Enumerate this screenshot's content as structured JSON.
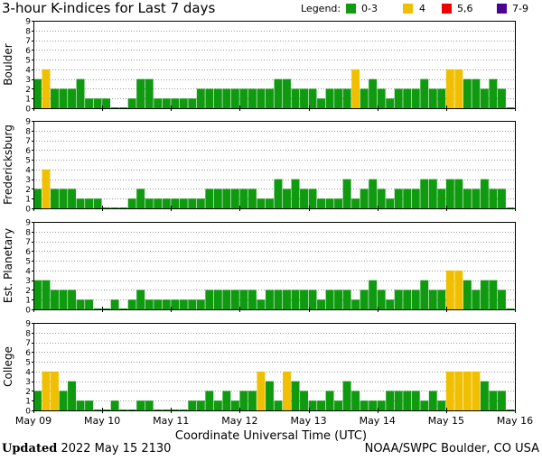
{
  "title": "3-hour K-indices for Last 7 days",
  "legend": {
    "label": "Legend:",
    "items": [
      {
        "label": "0-3",
        "color": "#0f9a0f"
      },
      {
        "label": "4",
        "color": "#f0c000"
      },
      {
        "label": "5,6",
        "color": "#ee0000"
      },
      {
        "label": "7-9",
        "color": "#4b0096"
      }
    ]
  },
  "footer": {
    "updated_label": "Updated",
    "updated_value": "2022 May 15 2130",
    "source": "NOAA/SWPC Boulder, CO USA"
  },
  "chart_data": [
    {
      "type": "bar",
      "ylabel": "Boulder",
      "ylim": [
        0,
        9
      ],
      "yticks": [
        "0",
        "1",
        "2",
        "3",
        "4",
        "5",
        "6",
        "7",
        "8",
        "9"
      ],
      "xlabel": "Coordinate Universal Time (UTC)",
      "xticks": [
        "May 09",
        "May 10",
        "May 11",
        "May 12",
        "May 13",
        "May 14",
        "May 15",
        "May 16"
      ],
      "values": [
        3,
        4,
        2,
        2,
        2,
        3,
        1,
        1,
        1,
        0,
        0,
        1,
        3,
        3,
        1,
        1,
        1,
        1,
        1,
        2,
        2,
        2,
        2,
        2,
        2,
        2,
        2,
        2,
        3,
        3,
        2,
        2,
        2,
        1,
        2,
        2,
        2,
        4,
        2,
        3,
        2,
        1,
        2,
        2,
        2,
        3,
        2,
        2,
        4,
        4,
        3,
        3,
        2,
        3,
        2,
        0
      ]
    },
    {
      "type": "bar",
      "ylabel": "Fredericksburg",
      "ylim": [
        0,
        9
      ],
      "yticks": [
        "0",
        "1",
        "2",
        "3",
        "4",
        "5",
        "6",
        "7",
        "8",
        "9"
      ],
      "xticks": [
        "May 09",
        "May 10",
        "May 11",
        "May 12",
        "May 13",
        "May 14",
        "May 15",
        "May 16"
      ],
      "values": [
        2,
        4,
        2,
        2,
        2,
        1,
        1,
        1,
        0,
        0,
        0,
        1,
        2,
        1,
        1,
        1,
        1,
        1,
        1,
        1,
        2,
        2,
        2,
        2,
        2,
        2,
        1,
        1,
        3,
        2,
        3,
        2,
        2,
        1,
        1,
        1,
        3,
        1,
        2,
        3,
        2,
        1,
        2,
        2,
        2,
        3,
        3,
        2,
        3,
        3,
        2,
        2,
        3,
        2,
        2,
        0
      ]
    },
    {
      "type": "bar",
      "ylabel": "Est. Planetary",
      "ylim": [
        0,
        9
      ],
      "yticks": [
        "0",
        "1",
        "2",
        "3",
        "4",
        "5",
        "6",
        "7",
        "8",
        "9"
      ],
      "xticks": [
        "May 09",
        "May 10",
        "May 11",
        "May 12",
        "May 13",
        "May 14",
        "May 15",
        "May 16"
      ],
      "values": [
        3,
        3,
        2,
        2,
        2,
        1,
        1,
        0,
        0,
        1,
        0,
        1,
        2,
        1,
        1,
        1,
        1,
        1,
        1,
        1,
        2,
        2,
        2,
        2,
        2,
        2,
        1,
        2,
        2,
        2,
        2,
        2,
        2,
        1,
        2,
        2,
        2,
        1,
        2,
        3,
        2,
        1,
        2,
        2,
        2,
        3,
        2,
        2,
        4,
        4,
        3,
        2,
        3,
        3,
        2,
        0
      ]
    },
    {
      "type": "bar",
      "ylabel": "College",
      "ylim": [
        0,
        9
      ],
      "yticks": [
        "0",
        "1",
        "2",
        "3",
        "4",
        "5",
        "6",
        "7",
        "8",
        "9"
      ],
      "xticks": [
        "May 09",
        "May 10",
        "May 11",
        "May 12",
        "May 13",
        "May 14",
        "May 15",
        "May 16"
      ],
      "values": [
        2,
        4,
        4,
        2,
        3,
        1,
        1,
        0,
        0,
        1,
        0,
        0,
        1,
        1,
        0,
        0,
        0,
        0,
        1,
        1,
        2,
        1,
        2,
        1,
        2,
        2,
        4,
        3,
        1,
        4,
        3,
        2,
        1,
        1,
        2,
        1,
        3,
        2,
        1,
        1,
        1,
        2,
        2,
        2,
        2,
        1,
        2,
        1,
        4,
        4,
        4,
        4,
        3,
        2,
        2,
        0
      ]
    }
  ]
}
